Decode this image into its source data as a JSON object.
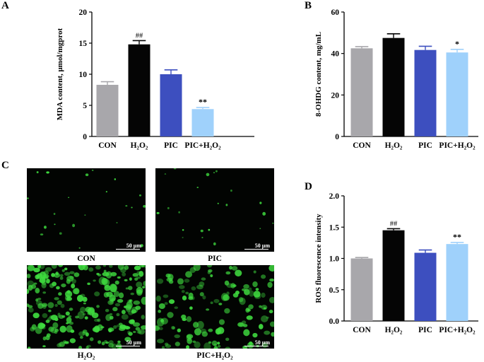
{
  "panels": {
    "A": {
      "letter": "A"
    },
    "B": {
      "letter": "B"
    },
    "C": {
      "letter": "C"
    },
    "D": {
      "letter": "D"
    }
  },
  "micrographs": [
    {
      "label": "CON",
      "scale": "50 μm",
      "density": "sparse"
    },
    {
      "label": "PIC",
      "scale": "50 μm",
      "density": "sparse"
    },
    {
      "label": "H₂O₂",
      "scale": "50 μm",
      "density": "dense"
    },
    {
      "label": "PIC+H₂O₂",
      "scale": "50 μm",
      "density": "medium"
    }
  ],
  "colors": {
    "CON": "#a8a7ab",
    "H2O2": "#050505",
    "PIC": "#3d4fbf",
    "PIC+H2O2": "#9fd1fb",
    "fluorescence": "#3fdc3f"
  },
  "chart_data": [
    {
      "id": "A",
      "type": "bar",
      "categories": [
        "CON",
        "H₂O₂",
        "PIC",
        "PIC+H₂O₂"
      ],
      "values": [
        8.3,
        14.8,
        10.0,
        4.4
      ],
      "errors": [
        0.5,
        0.6,
        0.7,
        0.25
      ],
      "annotations": [
        "",
        "##",
        "",
        "**"
      ],
      "ylabel": "MDA content, μmol/mgprot",
      "ylim": [
        0,
        20
      ],
      "yticks": [
        "0",
        "5",
        "10",
        "15",
        "20"
      ]
    },
    {
      "id": "B",
      "type": "bar",
      "categories": [
        "CON",
        "H₂O₂",
        "PIC",
        "PIC+H₂O₂"
      ],
      "values": [
        42.5,
        47.5,
        41.7,
        40.5
      ],
      "errors": [
        0.8,
        2.0,
        1.8,
        1.5
      ],
      "annotations": [
        "",
        "",
        "",
        "*"
      ],
      "ylabel": "8-OHDG content, mg/mL",
      "ylim": [
        0,
        60
      ],
      "yticks": [
        "0",
        "20",
        "40",
        "60"
      ]
    },
    {
      "id": "D",
      "type": "bar",
      "categories": [
        "CON",
        "H₂O₂",
        "PIC",
        "PIC+H₂O₂"
      ],
      "values": [
        1.0,
        1.45,
        1.09,
        1.23
      ],
      "errors": [
        0.015,
        0.025,
        0.045,
        0.025
      ],
      "annotations": [
        "",
        "##",
        "",
        "**"
      ],
      "ylabel": "ROS fluorescence intensity",
      "ylim": [
        0,
        2.0
      ],
      "yticks": [
        "0.0",
        "0.5",
        "1.0",
        "1.5",
        "2.0"
      ]
    }
  ]
}
